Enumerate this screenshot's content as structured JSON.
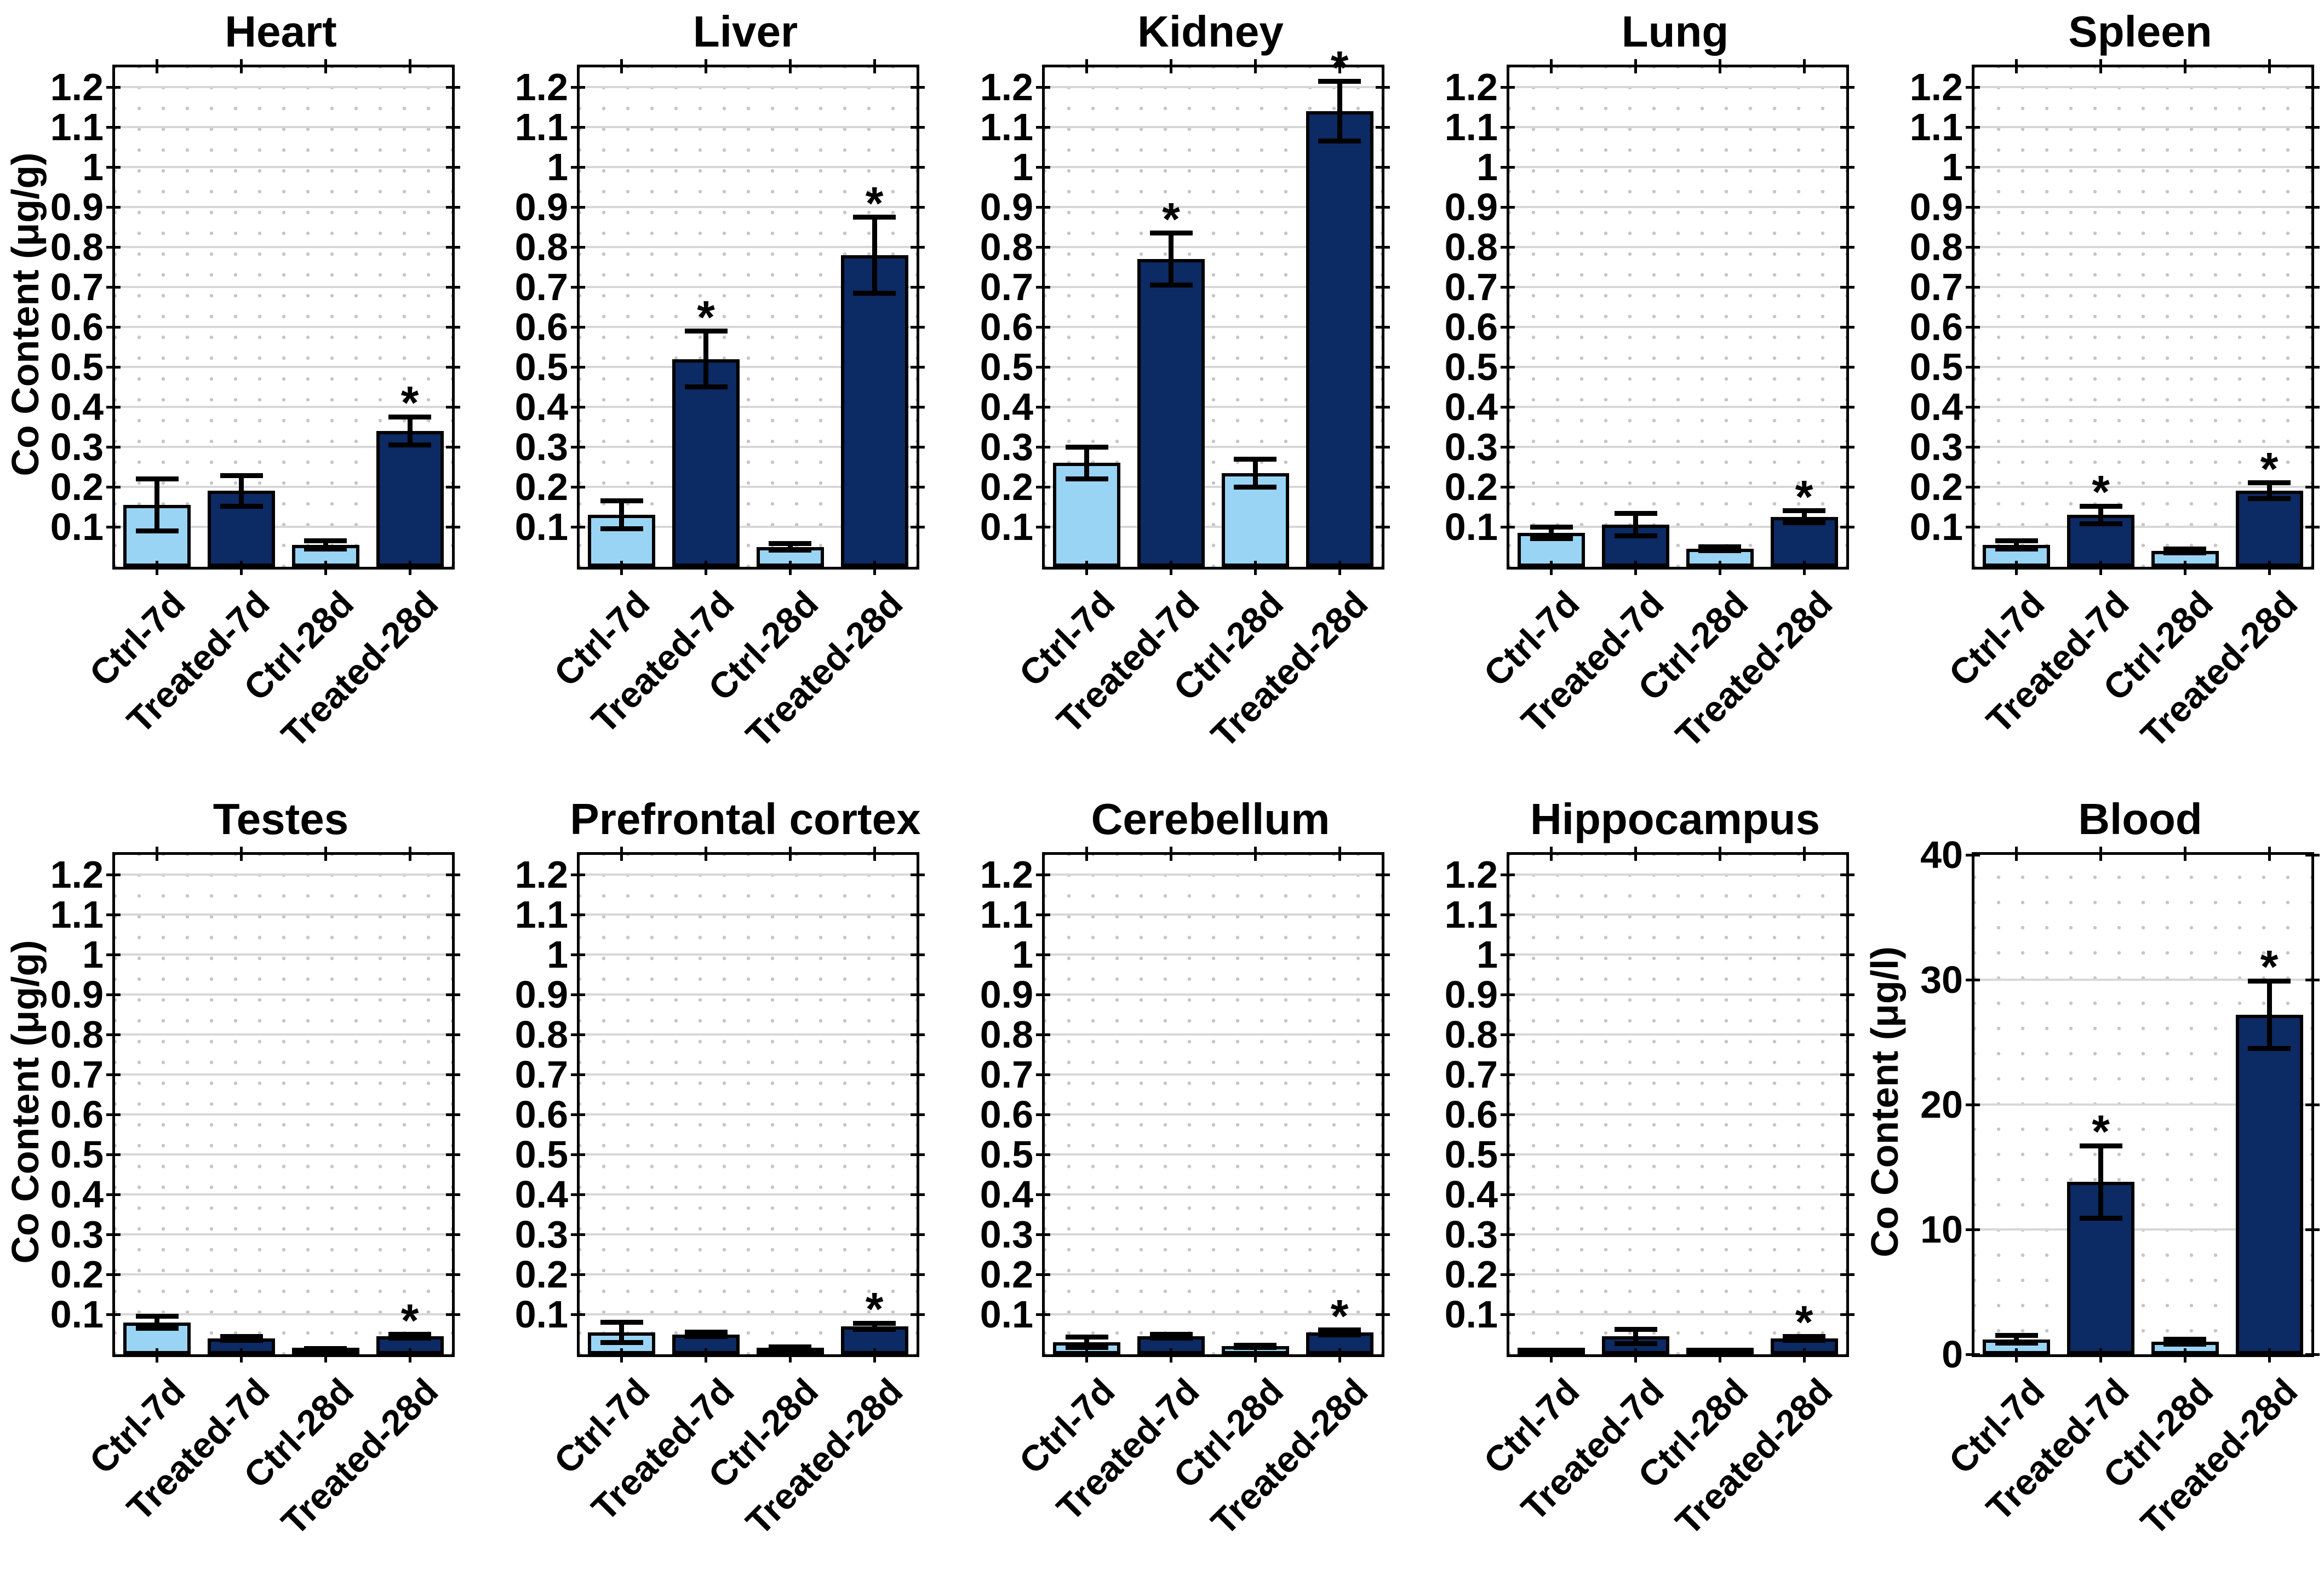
{
  "figure": {
    "rows": 2,
    "cols": 5,
    "group_labels": [
      "Ctrl-7d",
      "Treated-7d",
      "Ctrl-28d",
      "Treated-28d"
    ],
    "sig_marker": "*",
    "ylabel_mass": "Co Content (μg/g)",
    "ylabel_blood": "Co Content (μg/l)",
    "colors": {
      "control_bar": "#9AD4F5",
      "treated_bar": "#0C2A63",
      "bar_edge": "#000000",
      "axis": "#000000",
      "grid_major": "#D7D7D7",
      "grid_dot": "#C6C6C6",
      "background": "#FFFFFF",
      "text": "#000000"
    }
  },
  "chart_data": [
    {
      "key": "heart",
      "title": "Heart",
      "type": "bar",
      "ylabel": "Co Content (μg/g)",
      "show_ylabel": true,
      "categories": [
        "Ctrl-7d",
        "Treated-7d",
        "Ctrl-28d",
        "Treated-28d"
      ],
      "values": [
        0.155,
        0.19,
        0.055,
        0.34
      ],
      "errors": [
        0.065,
        0.038,
        0.01,
        0.035
      ],
      "sig": [
        false,
        false,
        false,
        true
      ],
      "bar_styles": [
        "control",
        "treated",
        "control",
        "treated"
      ],
      "ylim": [
        0,
        1.25
      ],
      "ytick_values": [
        0.1,
        0.2,
        0.3,
        0.4,
        0.5,
        0.6,
        0.7,
        0.8,
        0.9,
        1,
        1.1,
        1.2
      ],
      "ytick_labels": [
        "0.1",
        "0.2",
        "0.3",
        "0.4",
        "0.5",
        "0.6",
        "0.7",
        "0.8",
        "0.9",
        "1",
        "1.1",
        "1.2"
      ],
      "grid": "on"
    },
    {
      "key": "liver",
      "title": "Liver",
      "type": "bar",
      "ylabel": "Co Content (μg/g)",
      "show_ylabel": false,
      "categories": [
        "Ctrl-7d",
        "Treated-7d",
        "Ctrl-28d",
        "Treated-28d"
      ],
      "values": [
        0.13,
        0.52,
        0.05,
        0.78
      ],
      "errors": [
        0.035,
        0.07,
        0.008,
        0.095
      ],
      "sig": [
        false,
        true,
        false,
        true
      ],
      "bar_styles": [
        "control",
        "treated",
        "control",
        "treated"
      ],
      "ylim": [
        0,
        1.25
      ],
      "ytick_values": [
        0.1,
        0.2,
        0.3,
        0.4,
        0.5,
        0.6,
        0.7,
        0.8,
        0.9,
        1,
        1.1,
        1.2
      ],
      "ytick_labels": [
        "0.1",
        "0.2",
        "0.3",
        "0.4",
        "0.5",
        "0.6",
        "0.7",
        "0.8",
        "0.9",
        "1",
        "1.1",
        "1.2"
      ],
      "grid": "on"
    },
    {
      "key": "kidney",
      "title": "Kidney",
      "type": "bar",
      "ylabel": "Co Content (μg/g)",
      "show_ylabel": false,
      "categories": [
        "Ctrl-7d",
        "Treated-7d",
        "Ctrl-28d",
        "Treated-28d"
      ],
      "values": [
        0.26,
        0.77,
        0.235,
        1.14
      ],
      "errors": [
        0.04,
        0.065,
        0.035,
        0.075
      ],
      "sig": [
        false,
        true,
        false,
        true
      ],
      "bar_styles": [
        "control",
        "treated",
        "control",
        "treated"
      ],
      "ylim": [
        0,
        1.25
      ],
      "ytick_values": [
        0.1,
        0.2,
        0.3,
        0.4,
        0.5,
        0.6,
        0.7,
        0.8,
        0.9,
        1,
        1.1,
        1.2
      ],
      "ytick_labels": [
        "0.1",
        "0.2",
        "0.3",
        "0.4",
        "0.5",
        "0.6",
        "0.7",
        "0.8",
        "0.9",
        "1",
        "1.1",
        "1.2"
      ],
      "grid": "on"
    },
    {
      "key": "lung",
      "title": "Lung",
      "type": "bar",
      "ylabel": "Co Content (μg/g)",
      "show_ylabel": false,
      "categories": [
        "Ctrl-7d",
        "Treated-7d",
        "Ctrl-28d",
        "Treated-28d"
      ],
      "values": [
        0.085,
        0.105,
        0.045,
        0.125
      ],
      "errors": [
        0.015,
        0.028,
        0.005,
        0.015
      ],
      "sig": [
        false,
        false,
        false,
        true
      ],
      "bar_styles": [
        "control",
        "treated",
        "control",
        "treated"
      ],
      "ylim": [
        0,
        1.25
      ],
      "ytick_values": [
        0.1,
        0.2,
        0.3,
        0.4,
        0.5,
        0.6,
        0.7,
        0.8,
        0.9,
        1,
        1.1,
        1.2
      ],
      "ytick_labels": [
        "0.1",
        "0.2",
        "0.3",
        "0.4",
        "0.5",
        "0.6",
        "0.7",
        "0.8",
        "0.9",
        "1",
        "1.1",
        "1.2"
      ],
      "grid": "on"
    },
    {
      "key": "spleen",
      "title": "Spleen",
      "type": "bar",
      "ylabel": "Co Content (μg/g)",
      "show_ylabel": false,
      "categories": [
        "Ctrl-7d",
        "Treated-7d",
        "Ctrl-28d",
        "Treated-28d"
      ],
      "values": [
        0.055,
        0.13,
        0.04,
        0.19
      ],
      "errors": [
        0.01,
        0.022,
        0.005,
        0.02
      ],
      "sig": [
        false,
        true,
        false,
        true
      ],
      "bar_styles": [
        "control",
        "treated",
        "control",
        "treated"
      ],
      "ylim": [
        0,
        1.25
      ],
      "ytick_values": [
        0.1,
        0.2,
        0.3,
        0.4,
        0.5,
        0.6,
        0.7,
        0.8,
        0.9,
        1,
        1.1,
        1.2
      ],
      "ytick_labels": [
        "0.1",
        "0.2",
        "0.3",
        "0.4",
        "0.5",
        "0.6",
        "0.7",
        "0.8",
        "0.9",
        "1",
        "1.1",
        "1.2"
      ],
      "grid": "on"
    },
    {
      "key": "testes",
      "title": "Testes",
      "type": "bar",
      "ylabel": "Co Content (μg/g)",
      "show_ylabel": true,
      "categories": [
        "Ctrl-7d",
        "Treated-7d",
        "Ctrl-28d",
        "Treated-28d"
      ],
      "values": [
        0.08,
        0.04,
        0.012,
        0.045
      ],
      "errors": [
        0.015,
        0.005,
        0.003,
        0.005
      ],
      "sig": [
        false,
        false,
        false,
        true
      ],
      "bar_styles": [
        "control",
        "treated",
        "control",
        "treated"
      ],
      "ylim": [
        0,
        1.25
      ],
      "ytick_values": [
        0.1,
        0.2,
        0.3,
        0.4,
        0.5,
        0.6,
        0.7,
        0.8,
        0.9,
        1,
        1.1,
        1.2
      ],
      "ytick_labels": [
        "0.1",
        "0.2",
        "0.3",
        "0.4",
        "0.5",
        "0.6",
        "0.7",
        "0.8",
        "0.9",
        "1",
        "1.1",
        "1.2"
      ],
      "grid": "on"
    },
    {
      "key": "prefrontal-cortex",
      "title": "Prefrontal cortex",
      "type": "bar",
      "ylabel": "Co Content (μg/g)",
      "show_ylabel": false,
      "categories": [
        "Ctrl-7d",
        "Treated-7d",
        "Ctrl-28d",
        "Treated-28d"
      ],
      "values": [
        0.055,
        0.05,
        0.015,
        0.07
      ],
      "errors": [
        0.025,
        0.005,
        0.004,
        0.008
      ],
      "sig": [
        false,
        false,
        false,
        true
      ],
      "bar_styles": [
        "control",
        "treated",
        "control",
        "treated"
      ],
      "ylim": [
        0,
        1.25
      ],
      "ytick_values": [
        0.1,
        0.2,
        0.3,
        0.4,
        0.5,
        0.6,
        0.7,
        0.8,
        0.9,
        1,
        1.1,
        1.2
      ],
      "ytick_labels": [
        "0.1",
        "0.2",
        "0.3",
        "0.4",
        "0.5",
        "0.6",
        "0.7",
        "0.8",
        "0.9",
        "1",
        "1.1",
        "1.2"
      ],
      "grid": "on"
    },
    {
      "key": "cerebellum",
      "title": "Cerebellum",
      "type": "bar",
      "ylabel": "Co Content (μg/g)",
      "show_ylabel": false,
      "categories": [
        "Ctrl-7d",
        "Treated-7d",
        "Ctrl-28d",
        "Treated-28d"
      ],
      "values": [
        0.03,
        0.045,
        0.02,
        0.055
      ],
      "errors": [
        0.013,
        0.005,
        0.003,
        0.006
      ],
      "sig": [
        false,
        false,
        false,
        true
      ],
      "bar_styles": [
        "control",
        "treated",
        "control",
        "treated"
      ],
      "ylim": [
        0,
        1.25
      ],
      "ytick_values": [
        0.1,
        0.2,
        0.3,
        0.4,
        0.5,
        0.6,
        0.7,
        0.8,
        0.9,
        1,
        1.1,
        1.2
      ],
      "ytick_labels": [
        "0.1",
        "0.2",
        "0.3",
        "0.4",
        "0.5",
        "0.6",
        "0.7",
        "0.8",
        "0.9",
        "1",
        "1.1",
        "1.2"
      ],
      "grid": "on"
    },
    {
      "key": "hippocampus",
      "title": "Hippocampus",
      "type": "bar",
      "ylabel": "Co Content (μg/g)",
      "show_ylabel": false,
      "categories": [
        "Ctrl-7d",
        "Treated-7d",
        "Ctrl-28d",
        "Treated-28d"
      ],
      "values": [
        0.006,
        0.045,
        0.006,
        0.04
      ],
      "errors": [
        0.003,
        0.018,
        0.003,
        0.005
      ],
      "sig": [
        false,
        false,
        false,
        true
      ],
      "bar_styles": [
        "control",
        "treated",
        "control",
        "treated"
      ],
      "ylim": [
        0,
        1.25
      ],
      "ytick_values": [
        0.1,
        0.2,
        0.3,
        0.4,
        0.5,
        0.6,
        0.7,
        0.8,
        0.9,
        1,
        1.1,
        1.2
      ],
      "ytick_labels": [
        "0.1",
        "0.2",
        "0.3",
        "0.4",
        "0.5",
        "0.6",
        "0.7",
        "0.8",
        "0.9",
        "1",
        "1.1",
        "1.2"
      ],
      "grid": "on"
    },
    {
      "key": "blood",
      "title": "Blood",
      "type": "bar",
      "ylabel": "Co Content (μg/l)",
      "show_ylabel": true,
      "categories": [
        "Ctrl-7d",
        "Treated-7d",
        "Ctrl-28d",
        "Treated-28d"
      ],
      "values": [
        1.2,
        13.8,
        1.0,
        27.2
      ],
      "errors": [
        0.3,
        2.9,
        0.2,
        2.7
      ],
      "sig": [
        false,
        true,
        false,
        true
      ],
      "bar_styles": [
        "control",
        "treated",
        "control",
        "treated"
      ],
      "ylim": [
        0,
        40
      ],
      "ytick_values": [
        0,
        10,
        20,
        30,
        40
      ],
      "ytick_labels": [
        "0",
        "10",
        "20",
        "30",
        "40"
      ],
      "grid": "on"
    }
  ]
}
